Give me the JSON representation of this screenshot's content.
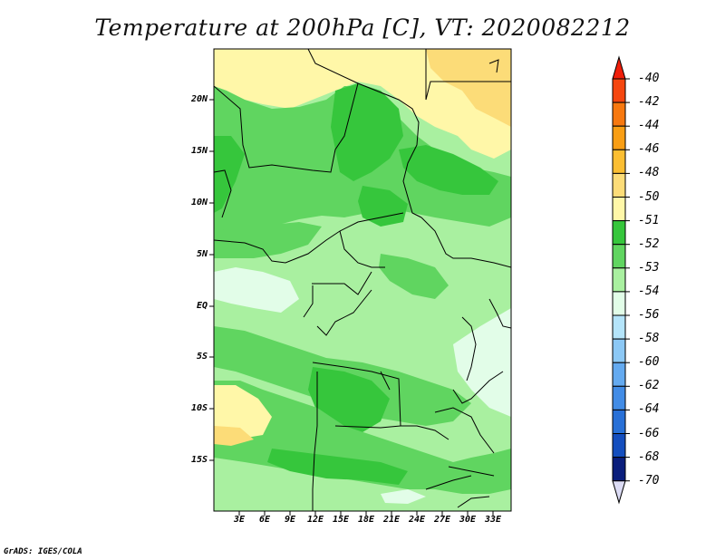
{
  "title": "Temperature at 200hPa [C], VT: 2020082212",
  "credit": "GrADS: IGES/COLA",
  "lat_labels": [
    "20N",
    "15N",
    "10N",
    "5N",
    "EQ",
    "5S",
    "10S",
    "15S"
  ],
  "lon_labels": [
    "3E",
    "6E",
    "9E",
    "12E",
    "15E",
    "18E",
    "21E",
    "24E",
    "27E",
    "30E",
    "33E"
  ],
  "colorbar": {
    "labels": [
      "-40",
      "-42",
      "-44",
      "-46",
      "-48",
      "-50",
      "-51",
      "-52",
      "-53",
      "-54",
      "-56",
      "-58",
      "-60",
      "-62",
      "-64",
      "-66",
      "-68",
      "-70"
    ],
    "colors": [
      "#f01e0a",
      "#f5460f",
      "#f7780f",
      "#f99e14",
      "#fbbe32",
      "#fcdc78",
      "#fff7a8",
      "#36c63c",
      "#60d560",
      "#a9f0a0",
      "#e2fde8",
      "#b4e4fa",
      "#8cc8f5",
      "#64aaf0",
      "#428ce6",
      "#2870d7",
      "#144ebe",
      "#0a1e7c",
      "#dcdcf5"
    ]
  }
}
